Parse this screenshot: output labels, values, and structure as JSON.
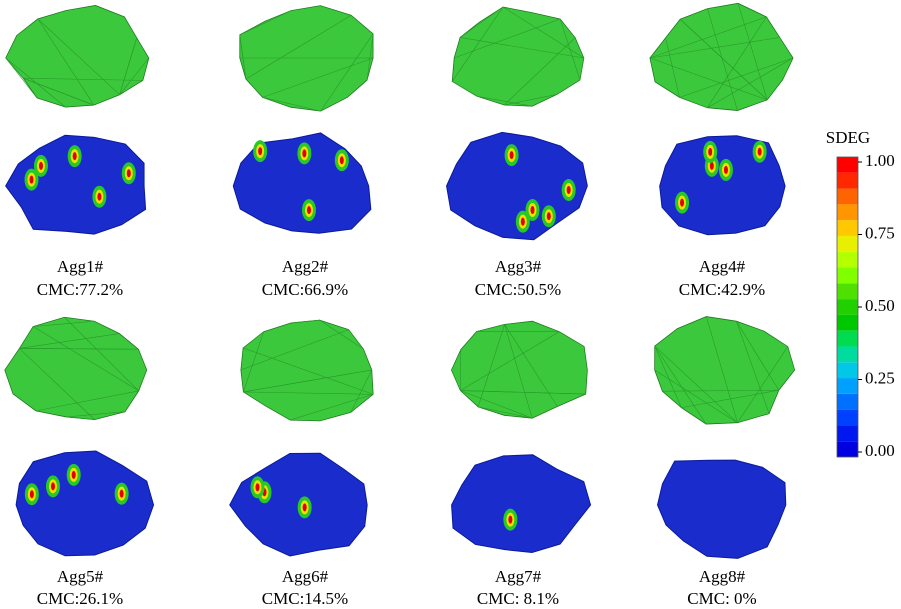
{
  "aggregates": [
    {
      "name": "Agg1#",
      "cmc": "CMC:77.2%"
    },
    {
      "name": "Agg2#",
      "cmc": "CMC:66.9%"
    },
    {
      "name": "Agg3#",
      "cmc": "CMC:50.5%"
    },
    {
      "name": "Agg4#",
      "cmc": "CMC:42.9%"
    },
    {
      "name": "Agg5#",
      "cmc": "CMC:26.1%"
    },
    {
      "name": "Agg6#",
      "cmc": "CMC:14.5%"
    },
    {
      "name": "Agg7#",
      "cmc": "CMC: 8.1%"
    },
    {
      "name": "Agg8#",
      "cmc": "CMC: 0%"
    }
  ],
  "legend": {
    "title": "SDEG",
    "range": [
      0,
      1
    ],
    "ticks": [
      {
        "value": 1,
        "label": "1.00"
      },
      {
        "value": 0.75,
        "label": "0.75"
      },
      {
        "value": 0.5,
        "label": "0.50"
      },
      {
        "value": 0.25,
        "label": "0.25"
      },
      {
        "value": 0,
        "label": "0.00"
      }
    ],
    "colors": [
      "#0000e0",
      "#0018f0",
      "#0040ff",
      "#0070ff",
      "#00a0ff",
      "#00c8e6",
      "#00dca0",
      "#00dc50",
      "#00c800",
      "#20d000",
      "#50e000",
      "#80ff00",
      "#b4ff00",
      "#e6f000",
      "#ffc800",
      "#ff9600",
      "#ff6400",
      "#ff2800",
      "#ff0000"
    ]
  }
}
